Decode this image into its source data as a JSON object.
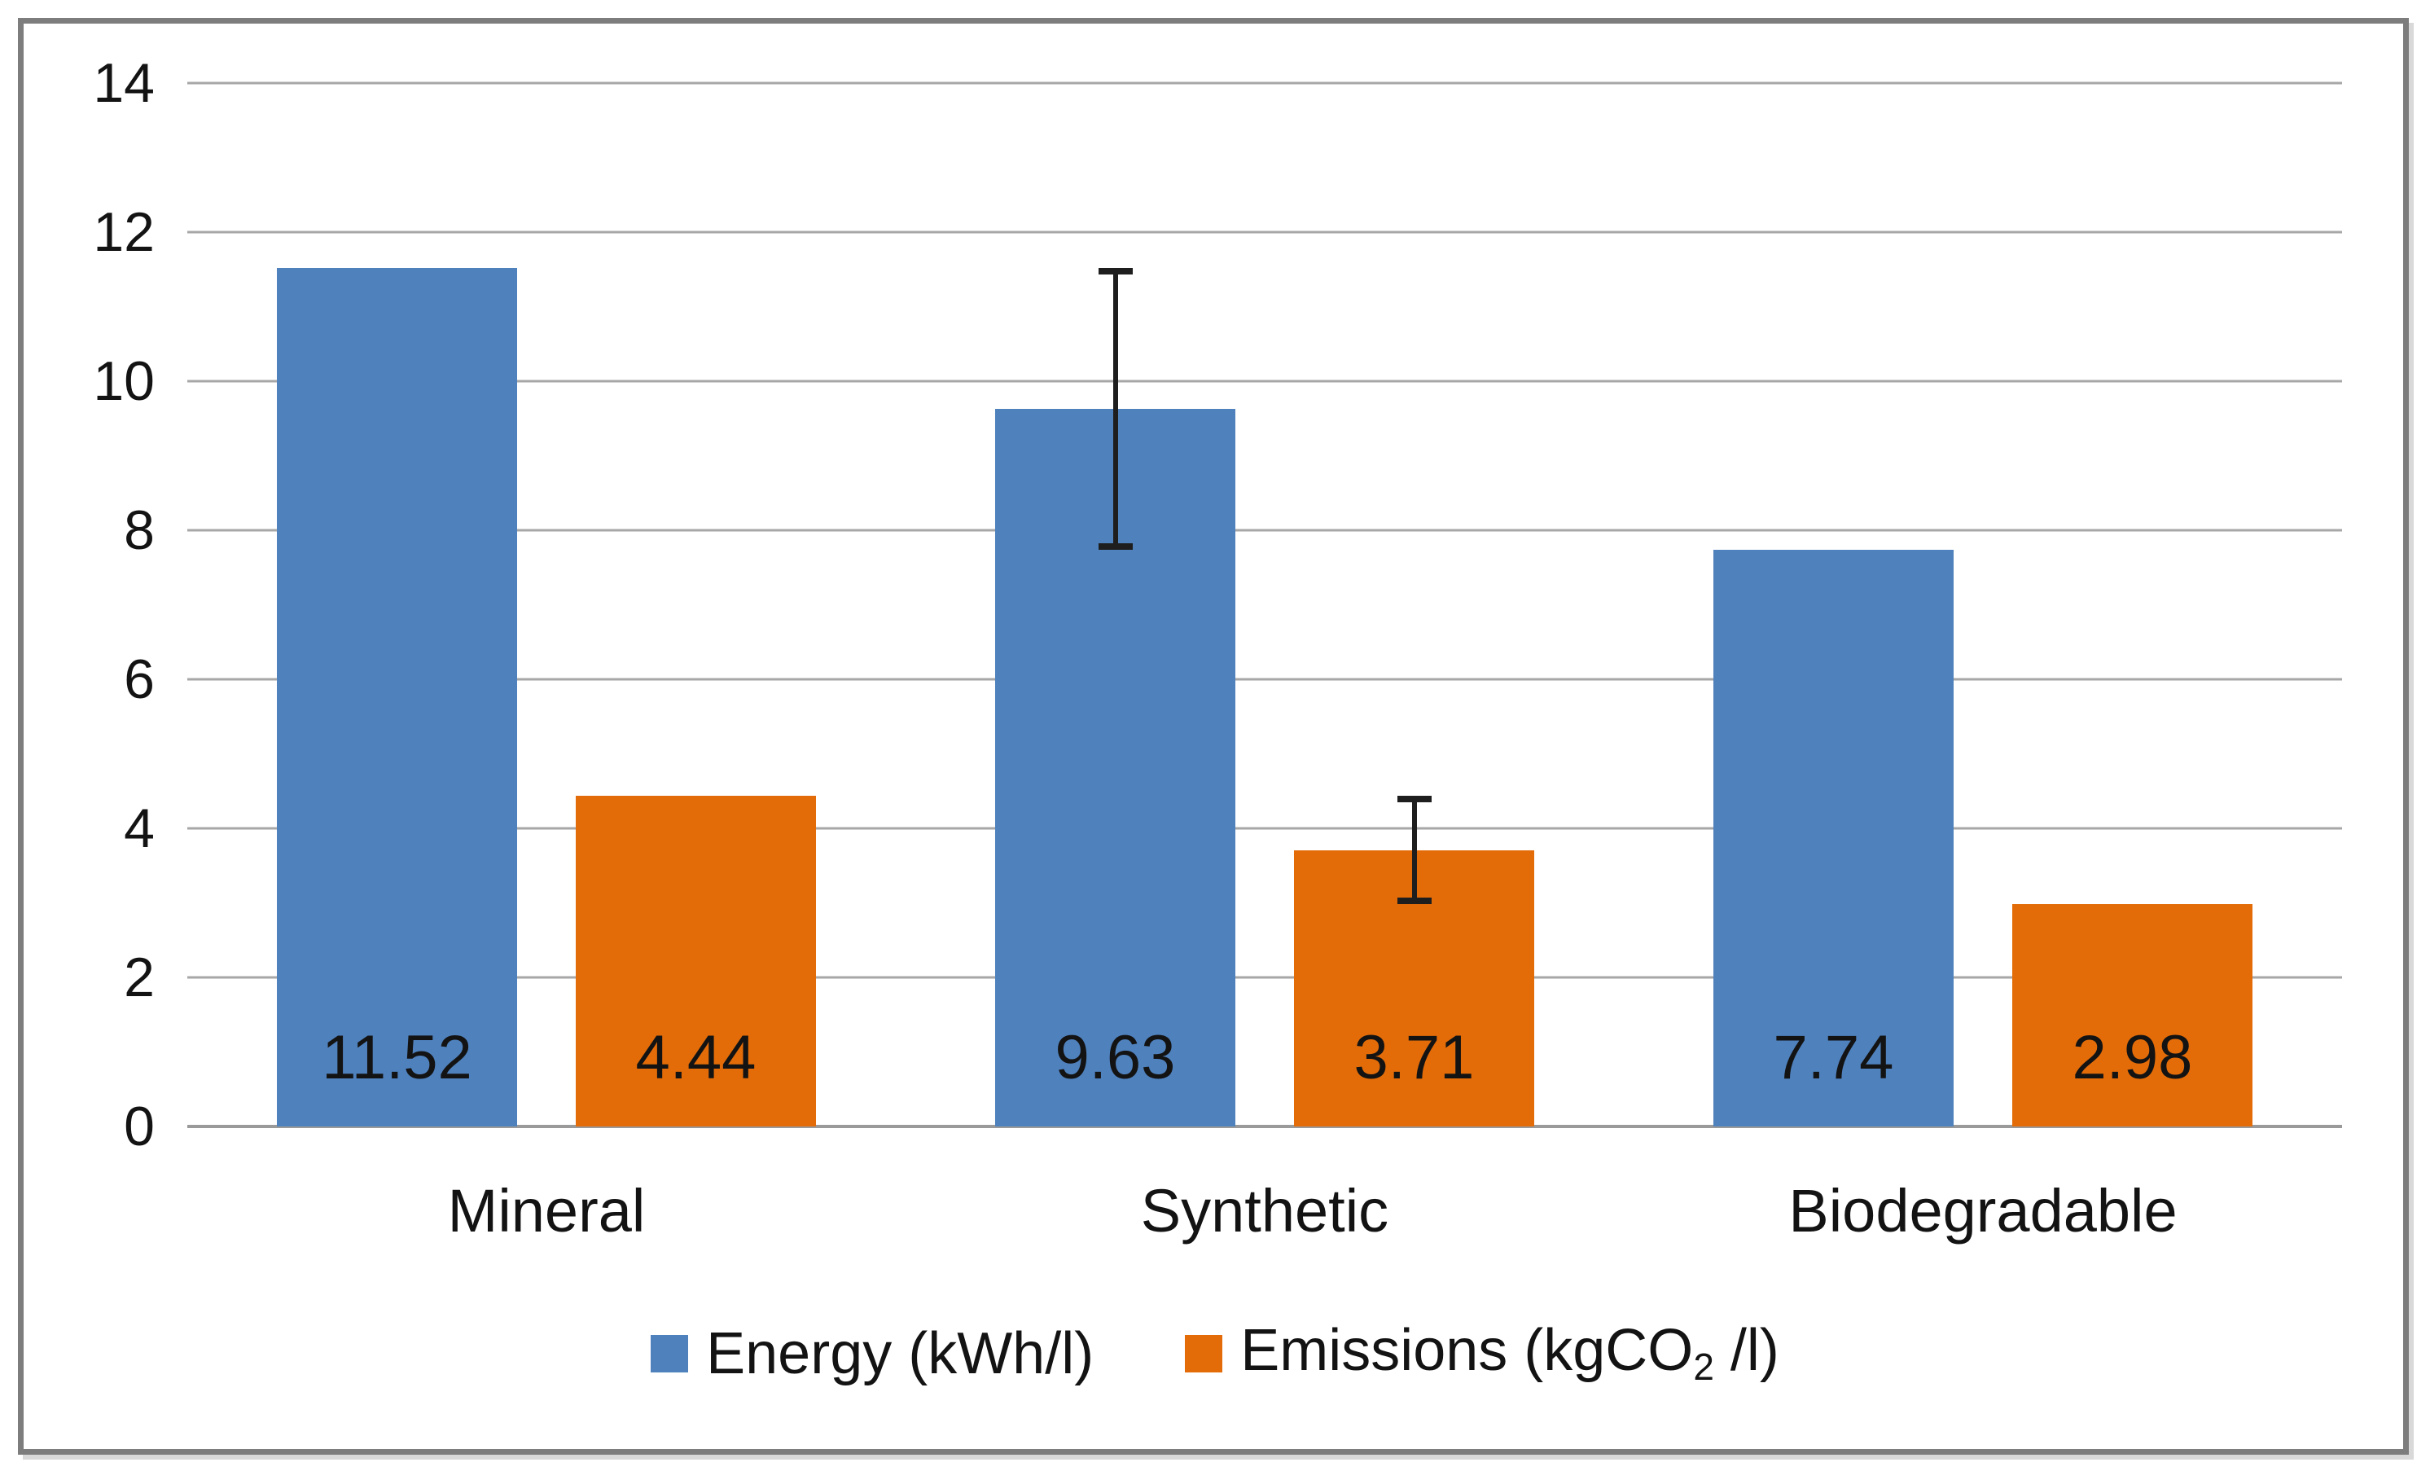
{
  "chart_data": {
    "type": "bar",
    "title": "",
    "xlabel": "",
    "ylabel": "",
    "categories": [
      "Mineral",
      "Synthetic",
      "Biodegradable"
    ],
    "series": [
      {
        "name": "Energy (kWh/l)",
        "color": "#4F81BD",
        "values": [
          11.52,
          9.63,
          7.74
        ],
        "labels": [
          "11.52",
          "9.63",
          "7.74"
        ]
      },
      {
        "name": "Emissions (kgCO2 /l)",
        "color": "#E36C09",
        "values": [
          4.44,
          3.71,
          2.98
        ],
        "labels": [
          "4.44",
          "3.71",
          "2.98"
        ]
      }
    ],
    "error_bars": [
      {
        "series_index": 0,
        "category": "Synthetic",
        "center": 9.63,
        "upper": 11.52,
        "lower": 7.74
      },
      {
        "series_index": 1,
        "category": "Synthetic",
        "center": 3.71,
        "upper": 4.44,
        "lower": 2.98
      }
    ],
    "ylim": [
      0,
      14
    ],
    "yticks": [
      0,
      2,
      4,
      6,
      8,
      10,
      12,
      14
    ],
    "grid": true,
    "gridline_color": "#A7A7A7",
    "legend_position": "bottom"
  },
  "legend": {
    "energy": {
      "label": "Energy (kWh/l)"
    },
    "emissions": {
      "prefix": "Emissions (kgCO",
      "subscript": "2",
      "suffix": " /l)"
    }
  },
  "colors": {
    "energy_bar": "#4F81BD",
    "emissions_bar": "#E36C09",
    "frame_border": "#7D7D7D",
    "text": "#131313",
    "error_bar": "#1E1E1E"
  }
}
